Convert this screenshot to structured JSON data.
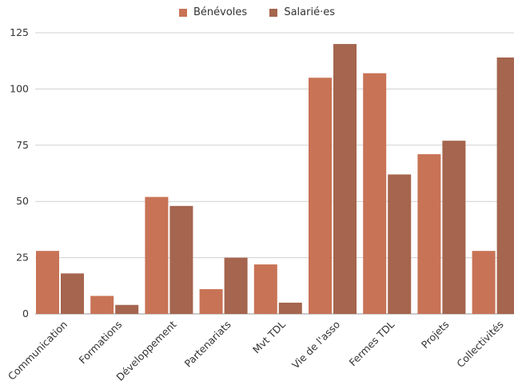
{
  "chart_data": {
    "type": "bar",
    "categories": [
      "Communication",
      "Formations",
      "Développement",
      "Partenariats",
      "Mvt TDL",
      "Vie de l'asso",
      "Fermes TDL",
      "Projets",
      "Collectivités"
    ],
    "series": [
      {
        "name": "Bénévoles",
        "color": "#c87356",
        "values": [
          28,
          8,
          52,
          11,
          22,
          105,
          107,
          71,
          28
        ]
      },
      {
        "name": "Salarié·es",
        "color": "#a5654e",
        "values": [
          18,
          4,
          48,
          25,
          5,
          120,
          62,
          77,
          114
        ]
      }
    ],
    "ylim": [
      0,
      125
    ],
    "yticks": [
      0,
      25,
      50,
      75,
      100,
      125
    ],
    "grid": true,
    "legend_position": "top-center",
    "title": "",
    "xlabel": "",
    "ylabel": ""
  }
}
